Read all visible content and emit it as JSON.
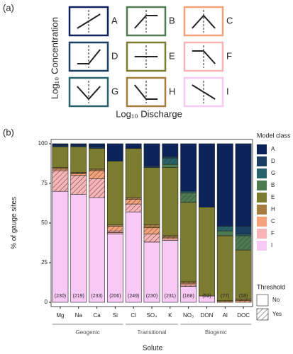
{
  "panel_a": {
    "label": "(a)",
    "y_label": "Log₁₀ Concentration",
    "x_label": "Log₁₀ Discharge",
    "classes": [
      "A",
      "B",
      "C",
      "D",
      "E",
      "F",
      "G",
      "H",
      "I"
    ]
  },
  "chart_data": {
    "type": "stacked-bar",
    "label": "(b)",
    "y_label": "% of gauge sites",
    "x_label": "Solute",
    "categories": [
      "Mg",
      "Na",
      "Ca",
      "Si",
      "Cl",
      "SO₄",
      "K",
      "NO₃",
      "DON",
      "Al",
      "DOC"
    ],
    "sample_size_labels": [
      "(230)",
      "(219)",
      "(233)",
      "(206)",
      "(249)",
      "(230)",
      "(231)",
      "(168)",
      "(53)",
      "(77)",
      "(58)"
    ],
    "groups": [
      {
        "name": "Geogenic",
        "members": [
          "Mg",
          "Na",
          "Ca",
          "Si"
        ]
      },
      {
        "name": "Transitional",
        "members": [
          "Cl",
          "SO₄",
          "K"
        ]
      },
      {
        "name": "Biogenic",
        "members": [
          "NO₃",
          "DON",
          "Al",
          "DOC"
        ]
      }
    ],
    "ylim": [
      0,
      100
    ],
    "yticks": [
      0,
      25,
      50,
      75,
      100
    ],
    "legend_title": "Model class",
    "threshold": {
      "title": "Threshold",
      "levels": [
        "No",
        "Yes"
      ]
    },
    "series": [
      {
        "name": "I",
        "color": "#f8c9f4",
        "values": [
          70,
          68,
          66,
          43,
          57,
          38,
          39,
          10,
          4,
          0,
          0
        ],
        "yes_values": [
          0,
          0,
          0,
          0,
          0,
          0,
          0,
          0,
          0,
          0,
          0
        ]
      },
      {
        "name": "F",
        "color": "#f7b3b5",
        "values": [
          0,
          0,
          0,
          1,
          0,
          0,
          1,
          0,
          0,
          0,
          0
        ],
        "yes_values": [
          13,
          12,
          12,
          1,
          5,
          5,
          0,
          1,
          0,
          0,
          0
        ]
      },
      {
        "name": "C",
        "color": "#f4a27c",
        "values": [
          0,
          0,
          0,
          0,
          0,
          0,
          0,
          1,
          0,
          0,
          0
        ],
        "yes_values": [
          1,
          1,
          5,
          3,
          3,
          4,
          1,
          0,
          0,
          0,
          1
        ]
      },
      {
        "name": "H",
        "color": "#a67b3f",
        "values": [
          1,
          0,
          0,
          1,
          0,
          0,
          0,
          0,
          0,
          0,
          0
        ],
        "yes_values": [
          0,
          1,
          1,
          0,
          1,
          2,
          1,
          1,
          0,
          1,
          1
        ]
      },
      {
        "name": "E",
        "color": "#7c7c30",
        "values": [
          13,
          16,
          13,
          40,
          31,
          36,
          43,
          50,
          56,
          41,
          31
        ],
        "yes_values": [
          0,
          0,
          0,
          0,
          0,
          0,
          0,
          0,
          0,
          0,
          0
        ]
      },
      {
        "name": "B",
        "color": "#4d7a50",
        "values": [
          0,
          0,
          0,
          0,
          0,
          0,
          2,
          0,
          0,
          3,
          0
        ],
        "yes_values": [
          0,
          0,
          0,
          0,
          0,
          0,
          0,
          6,
          0,
          0,
          9
        ]
      },
      {
        "name": "G",
        "color": "#28626a",
        "values": [
          0,
          0,
          0,
          0,
          0,
          0,
          0,
          1,
          0,
          0,
          1
        ],
        "yes_values": [
          0,
          0,
          0,
          0,
          0,
          0,
          4,
          0,
          0,
          3,
          0
        ]
      },
      {
        "name": "D",
        "color": "#1a3e62",
        "values": [
          1,
          1,
          1,
          0,
          0,
          1,
          1,
          0,
          0,
          0,
          5
        ],
        "yes_values": [
          0,
          0,
          0,
          0,
          0,
          0,
          0,
          0,
          0,
          0,
          0
        ]
      },
      {
        "name": "A",
        "color": "#0b2358",
        "values": [
          1,
          1,
          2,
          11,
          3,
          14,
          8,
          30,
          40,
          52,
          52
        ],
        "yes_values": [
          0,
          0,
          0,
          0,
          0,
          0,
          0,
          0,
          0,
          0,
          0
        ]
      }
    ]
  }
}
